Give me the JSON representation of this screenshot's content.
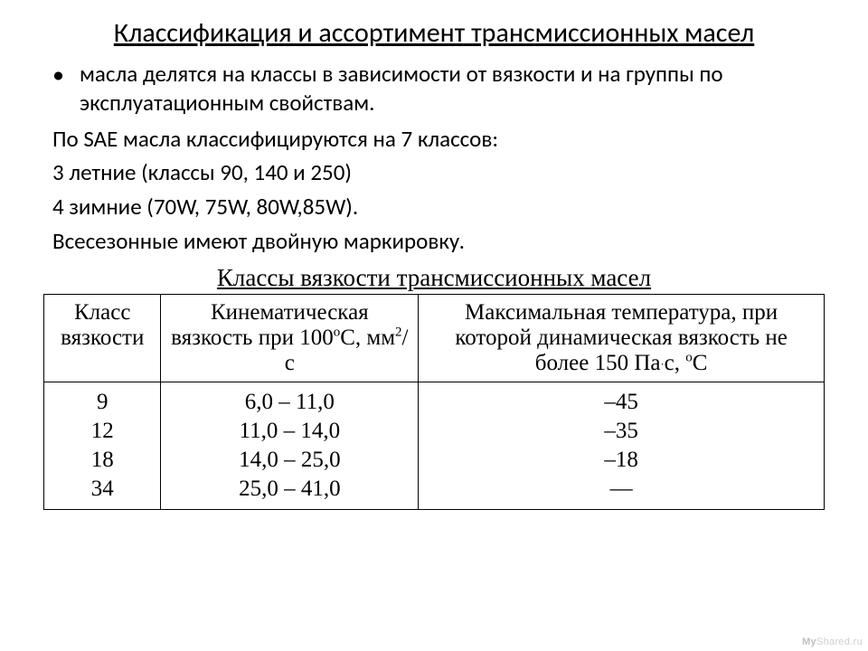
{
  "slide": {
    "title": "Классификация и ассортимент трансмиссионных масел",
    "bullet": "масла делятся на классы в зависимости от вязкости и на группы по эксплуатационным свойствам.",
    "lines": {
      "sae": "По SAE масла классифицируются на 7 классов:",
      "summer": "3 летние (классы 90, 140 и 250)",
      "winter": "4 зимние (70W, 75W, 80W,85W).",
      "allseason": "Всесезонные имеют двойную маркировку."
    },
    "subheading": "Классы вязкости трансмиссионных масел"
  },
  "table": {
    "headers": {
      "c0": "Класс вязкости",
      "c1_prefix": "Кинематическая вязкость при 100",
      "c1_unit_deg": "о",
      "c1_unit_c": "С, мм",
      "c1_unit_exp": "2",
      "c1_unit_suffix": "/с",
      "c2_prefix": "Максимальная температура, при которой динамическая вязкость не более 150 Па",
      "c2_dot": "·",
      "c2_s": "с, ",
      "c2_deg": "о",
      "c2_c": "С"
    },
    "rows": {
      "class": [
        "9",
        "12",
        "18",
        "34"
      ],
      "kv": [
        "6,0 – 11,0",
        "11,0 – 14,0",
        "14,0 – 25,0",
        "25,0 – 41,0"
      ],
      "temp": [
        "–45",
        "–35",
        "–18",
        "––"
      ]
    }
  },
  "watermark": {
    "my": "My",
    "shared": "Shared",
    "dot": ".",
    "ru": "ru"
  },
  "style": {
    "background_color": "#ffffff",
    "text_color": "#000000",
    "title_fontsize": 30,
    "body_fontsize": 25,
    "table_fontsize": 25,
    "body_font": "Calibri",
    "table_font": "Times New Roman",
    "border_color": "#000000",
    "watermark_color": "#cfcfcf",
    "col_widths_pct": [
      15,
      33,
      52
    ]
  }
}
